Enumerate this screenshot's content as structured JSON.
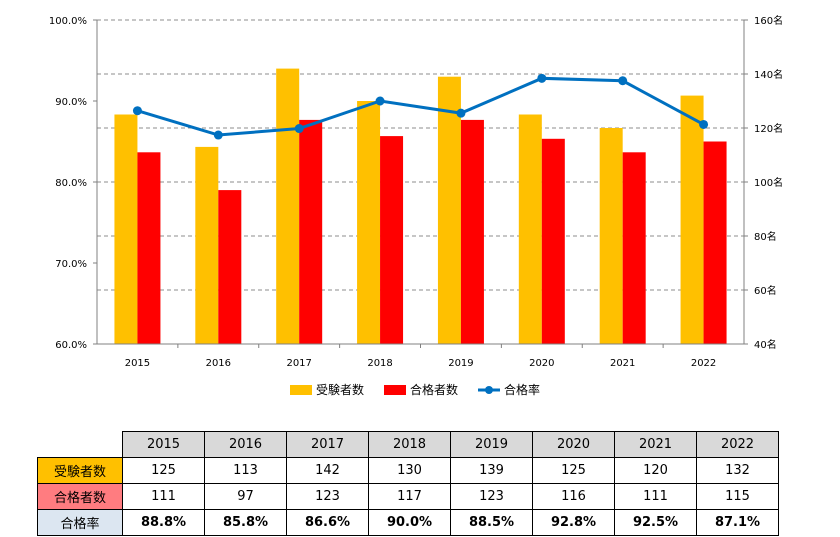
{
  "chart_data": {
    "type": "bar",
    "categories": [
      "2015",
      "2016",
      "2017",
      "2018",
      "2019",
      "2020",
      "2021",
      "2022"
    ],
    "series": [
      {
        "name": "受験者数",
        "kind": "bar",
        "axis": "right",
        "color": "#ffc000",
        "values": [
          125,
          113,
          142,
          130,
          139,
          125,
          120,
          132
        ]
      },
      {
        "name": "合格者数",
        "kind": "bar",
        "axis": "right",
        "color": "#ff0000",
        "values": [
          111,
          97,
          123,
          117,
          123,
          116,
          111,
          115
        ]
      },
      {
        "name": "合格率",
        "kind": "line",
        "axis": "left",
        "color": "#0070c0",
        "values": [
          88.8,
          85.8,
          86.6,
          90.0,
          88.5,
          92.8,
          92.5,
          87.1
        ]
      }
    ],
    "y_left": {
      "ylim": [
        60,
        100
      ],
      "ticks": [
        "60.0%",
        "70.0%",
        "80.0%",
        "90.0%",
        "100.0%"
      ]
    },
    "y_right": {
      "ylim": [
        40,
        160
      ],
      "ticks": [
        "40名",
        "60名",
        "80名",
        "100名",
        "120名",
        "140名",
        "160名"
      ]
    },
    "grid": true,
    "legend_position": "bottom",
    "title": "",
    "xlabel": "",
    "ylabel": ""
  },
  "table": {
    "years": [
      "2015",
      "2016",
      "2017",
      "2018",
      "2019",
      "2020",
      "2021",
      "2022"
    ],
    "rows": [
      {
        "label": "受験者数",
        "bg": "#ffc000",
        "values": [
          "125",
          "113",
          "142",
          "130",
          "139",
          "125",
          "120",
          "132"
        ]
      },
      {
        "label": "合格者数",
        "bg": "#ff7c80",
        "values": [
          "111",
          "97",
          "123",
          "117",
          "123",
          "116",
          "111",
          "115"
        ]
      },
      {
        "label": "合格率",
        "bg": "#dce6f1",
        "values": [
          "88.8%",
          "85.8%",
          "86.6%",
          "90.0%",
          "88.5%",
          "92.8%",
          "92.5%",
          "87.1%"
        ]
      }
    ]
  }
}
